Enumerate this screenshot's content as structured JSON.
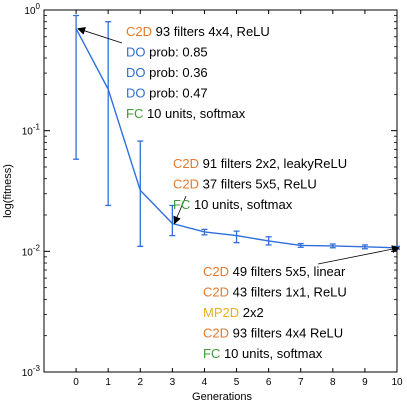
{
  "chart_data": {
    "type": "line",
    "xlabel": "Generations",
    "ylabel": "log(fitness)",
    "yscale": "log",
    "xlim": [
      -1,
      10
    ],
    "ylim": [
      0.001,
      1
    ],
    "x": [
      0,
      1,
      2,
      3,
      4,
      5,
      6,
      7,
      8,
      9,
      10
    ],
    "x_ticks": [
      "0",
      "1",
      "2",
      "3",
      "4",
      "5",
      "6",
      "7",
      "8",
      "9",
      "10"
    ],
    "y_ticks": [
      {
        "value": 1,
        "base": "10",
        "exp": "0"
      },
      {
        "value": 0.1,
        "base": "10",
        "exp": "-1"
      },
      {
        "value": 0.01,
        "base": "10",
        "exp": "-2"
      },
      {
        "value": 0.001,
        "base": "10",
        "exp": "-3"
      }
    ],
    "series": [
      {
        "values": [
          0.7,
          0.22,
          0.032,
          0.017,
          0.0145,
          0.0135,
          0.0122,
          0.0112,
          0.0111,
          0.0109,
          0.0107
        ],
        "err_low": [
          0.058,
          0.024,
          0.011,
          0.0135,
          0.0137,
          0.0118,
          0.0113,
          0.0108,
          0.0107,
          0.0105,
          0.0104
        ],
        "err_high": [
          0.9,
          0.8,
          0.082,
          0.024,
          0.0152,
          0.0147,
          0.0132,
          0.0116,
          0.0115,
          0.0113,
          0.011
        ],
        "color": "#2f6fdc"
      }
    ],
    "annotations": [
      {
        "point_x": 0,
        "lines": [
          [
            {
              "text": "C2D",
              "color": "#e07a2e"
            },
            {
              "text": " 93 filters 4x4, ReLU",
              "color": "#000000"
            }
          ],
          [
            {
              "text": "DO",
              "color": "#2f6fcc"
            },
            {
              "text": " prob: 0.85",
              "color": "#000000"
            }
          ],
          [
            {
              "text": "DO",
              "color": "#2f6fcc"
            },
            {
              "text": " prob: 0.36",
              "color": "#000000"
            }
          ],
          [
            {
              "text": "DO",
              "color": "#2f6fcc"
            },
            {
              "text": " prob: 0.47",
              "color": "#000000"
            }
          ],
          [
            {
              "text": "FC",
              "color": "#3f9a3a"
            },
            {
              "text": " 10 units, softmax",
              "color": "#000000"
            }
          ]
        ]
      },
      {
        "point_x": 3,
        "lines": [
          [
            {
              "text": "C2D",
              "color": "#e07a2e"
            },
            {
              "text": " 91 filters 2x2, leakyReLU",
              "color": "#000000"
            }
          ],
          [
            {
              "text": "C2D",
              "color": "#e07a2e"
            },
            {
              "text": " 37 filters 5x5, ReLU",
              "color": "#000000"
            }
          ],
          [
            {
              "text": "FC",
              "color": "#3f9a3a"
            },
            {
              "text": " 10 units, softmax",
              "color": "#000000"
            }
          ]
        ]
      },
      {
        "point_x": 10,
        "lines": [
          [
            {
              "text": "C2D",
              "color": "#e07a2e"
            },
            {
              "text": " 49 filters 5x5, linear",
              "color": "#000000"
            }
          ],
          [
            {
              "text": "C2D",
              "color": "#e07a2e"
            },
            {
              "text": " 43 filters 1x1, ReLU",
              "color": "#000000"
            }
          ],
          [
            {
              "text": "MP2D",
              "color": "#e8b020"
            },
            {
              "text": " 2x2",
              "color": "#000000"
            }
          ],
          [
            {
              "text": "C2D",
              "color": "#e07a2e"
            },
            {
              "text": " 93 filters 4x4 ReLU",
              "color": "#000000"
            }
          ],
          [
            {
              "text": "FC",
              "color": "#3f9a3a"
            },
            {
              "text": " 10 units, softmax",
              "color": "#000000"
            }
          ]
        ]
      }
    ]
  }
}
